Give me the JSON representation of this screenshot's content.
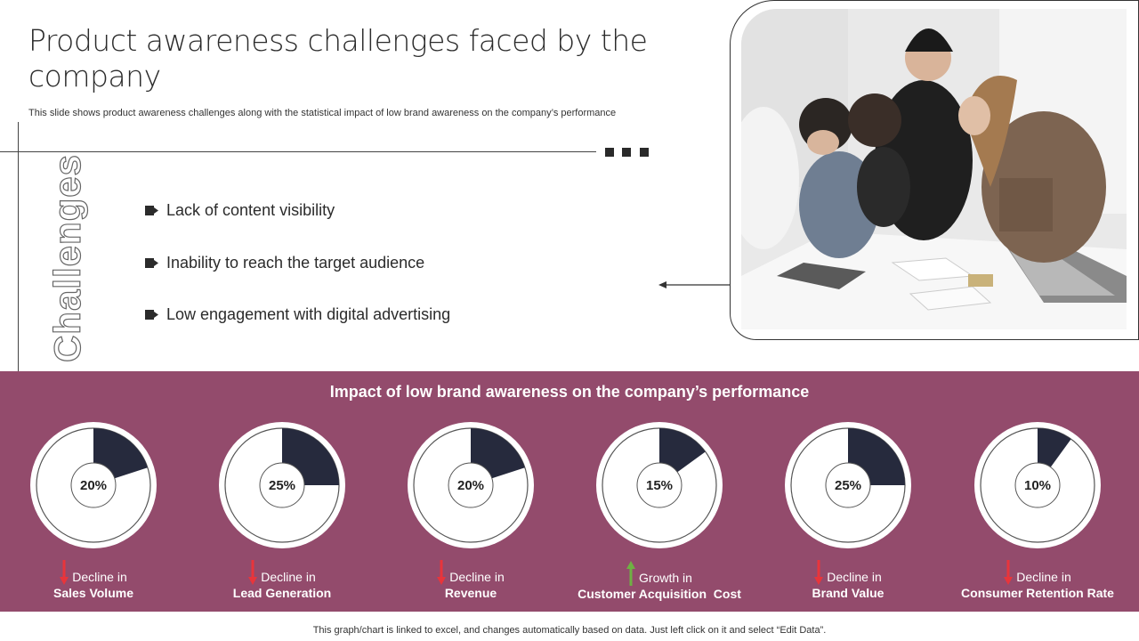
{
  "header": {
    "title": "Product awareness challenges faced by the company",
    "subtitle": "This slide shows product awareness challenges along with the statistical impact of low brand awareness on the company’s performance"
  },
  "challenges": {
    "side_label": "Challenges",
    "items": [
      "Lack of content visibility",
      "Inability to reach the target audience",
      "Low engagement with digital advertising"
    ]
  },
  "impact": {
    "title": "Impact of low brand awareness on the company’s performance",
    "colors": {
      "band": "#934b6c",
      "slice": "#262a3d",
      "decline_arrow": "#e8353b",
      "growth_arrow": "#6fb043"
    }
  },
  "chart_data": {
    "type": "pie",
    "items": [
      {
        "value": 20,
        "label": "20%",
        "line1": "Decline in",
        "line2": "Sales Volume",
        "trend": "decline"
      },
      {
        "value": 25,
        "label": "25%",
        "line1": "Decline in",
        "line2": "Lead Generation",
        "trend": "decline"
      },
      {
        "value": 20,
        "label": "20%",
        "line1": "Decline in",
        "line2": "Revenue",
        "trend": "decline"
      },
      {
        "value": 15,
        "label": "15%",
        "line1": "Growth in",
        "line2": "Customer Acquisition  Cost",
        "trend": "growth"
      },
      {
        "value": 25,
        "label": "25%",
        "line1": "Decline in",
        "line2": "Brand Value",
        "trend": "decline"
      },
      {
        "value": 10,
        "label": "10%",
        "line1": "Decline in",
        "line2": "Consumer Retention Rate",
        "trend": "decline"
      }
    ]
  },
  "footer": {
    "note": "This graph/chart is linked to excel,  and changes automatically based on data. Just left click on it and select “Edit Data”."
  }
}
